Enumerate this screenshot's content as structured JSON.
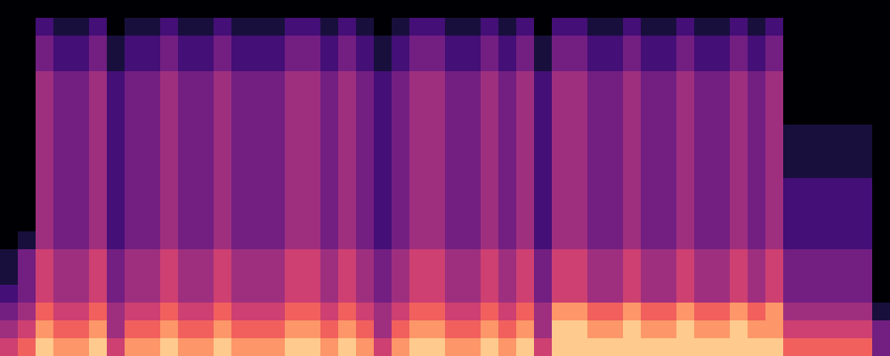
{
  "chart_data": {
    "type": "heatmap",
    "tick_labels": false,
    "zlim": [
      0,
      9
    ],
    "cells": [
      [
        0,
        0,
        0,
        0,
        0,
        0,
        0,
        0,
        0,
        0,
        0,
        0,
        0,
        0,
        0,
        0,
        0,
        0,
        0,
        0,
        0,
        0,
        0,
        0,
        0,
        0,
        0,
        0,
        0,
        0,
        0,
        0,
        0,
        0,
        0,
        0,
        0,
        0,
        0,
        0,
        0,
        0,
        0,
        0,
        0,
        0,
        0,
        0,
        0,
        0
      ],
      [
        0,
        0,
        2,
        1,
        1,
        2,
        0,
        1,
        1,
        2,
        1,
        1,
        2,
        1,
        1,
        1,
        2,
        2,
        1,
        2,
        1,
        0,
        1,
        2,
        2,
        1,
        1,
        2,
        1,
        2,
        0,
        2,
        2,
        1,
        1,
        2,
        1,
        1,
        2,
        1,
        1,
        2,
        1,
        2,
        0,
        0,
        0,
        0,
        0,
        0
      ],
      [
        0,
        0,
        3,
        2,
        2,
        3,
        1,
        2,
        2,
        3,
        2,
        2,
        3,
        2,
        2,
        2,
        3,
        3,
        2,
        3,
        2,
        1,
        2,
        3,
        3,
        2,
        2,
        3,
        2,
        3,
        1,
        3,
        3,
        2,
        2,
        3,
        2,
        2,
        3,
        2,
        2,
        3,
        2,
        3,
        0,
        0,
        0,
        0,
        0,
        0
      ],
      [
        0,
        0,
        3,
        2,
        2,
        3,
        1,
        2,
        2,
        3,
        2,
        2,
        3,
        2,
        2,
        2,
        3,
        3,
        2,
        3,
        2,
        1,
        2,
        3,
        3,
        2,
        2,
        3,
        2,
        3,
        1,
        3,
        3,
        2,
        2,
        3,
        2,
        2,
        3,
        2,
        2,
        3,
        2,
        3,
        0,
        0,
        0,
        0,
        0,
        0
      ],
      [
        0,
        0,
        4,
        3,
        3,
        4,
        2,
        3,
        3,
        4,
        3,
        3,
        4,
        3,
        3,
        3,
        4,
        4,
        3,
        4,
        3,
        2,
        3,
        4,
        4,
        3,
        3,
        4,
        3,
        4,
        2,
        4,
        4,
        3,
        3,
        4,
        3,
        3,
        4,
        3,
        3,
        4,
        3,
        4,
        0,
        0,
        0,
        0,
        0,
        0
      ],
      [
        0,
        0,
        4,
        3,
        3,
        4,
        2,
        3,
        3,
        4,
        3,
        3,
        4,
        3,
        3,
        3,
        4,
        4,
        3,
        4,
        3,
        2,
        3,
        4,
        4,
        3,
        3,
        4,
        3,
        4,
        2,
        4,
        4,
        3,
        3,
        4,
        3,
        3,
        4,
        3,
        3,
        4,
        3,
        4,
        0,
        0,
        0,
        0,
        0,
        0
      ],
      [
        0,
        0,
        4,
        3,
        3,
        4,
        2,
        3,
        3,
        4,
        3,
        3,
        4,
        3,
        3,
        3,
        4,
        4,
        3,
        4,
        3,
        2,
        3,
        4,
        4,
        3,
        3,
        4,
        3,
        4,
        2,
        4,
        4,
        3,
        3,
        4,
        3,
        3,
        4,
        3,
        3,
        4,
        3,
        4,
        0,
        0,
        0,
        0,
        0,
        0
      ],
      [
        0,
        0,
        4,
        3,
        3,
        4,
        2,
        3,
        3,
        4,
        3,
        3,
        4,
        3,
        3,
        3,
        4,
        4,
        3,
        4,
        3,
        2,
        3,
        4,
        4,
        3,
        3,
        4,
        3,
        4,
        2,
        4,
        4,
        3,
        3,
        4,
        3,
        3,
        4,
        3,
        3,
        4,
        3,
        4,
        1,
        1,
        1,
        1,
        1,
        0
      ],
      [
        0,
        0,
        4,
        3,
        3,
        4,
        2,
        3,
        3,
        4,
        3,
        3,
        4,
        3,
        3,
        3,
        4,
        4,
        3,
        4,
        3,
        2,
        3,
        4,
        4,
        3,
        3,
        4,
        3,
        4,
        2,
        4,
        4,
        3,
        3,
        4,
        3,
        3,
        4,
        3,
        3,
        4,
        3,
        4,
        1,
        1,
        1,
        1,
        1,
        0
      ],
      [
        0,
        0,
        4,
        3,
        3,
        4,
        2,
        3,
        3,
        4,
        3,
        3,
        4,
        3,
        3,
        3,
        4,
        4,
        3,
        4,
        3,
        2,
        3,
        4,
        4,
        3,
        3,
        4,
        3,
        4,
        2,
        4,
        4,
        3,
        3,
        4,
        3,
        3,
        4,
        3,
        3,
        4,
        3,
        4,
        1,
        1,
        1,
        1,
        1,
        0
      ],
      [
        0,
        0,
        4,
        3,
        3,
        4,
        2,
        3,
        3,
        4,
        3,
        3,
        4,
        3,
        3,
        3,
        4,
        4,
        3,
        4,
        3,
        2,
        3,
        4,
        4,
        3,
        3,
        4,
        3,
        4,
        2,
        4,
        4,
        3,
        3,
        4,
        3,
        3,
        4,
        3,
        3,
        4,
        3,
        4,
        2,
        2,
        2,
        2,
        2,
        0
      ],
      [
        0,
        0,
        4,
        3,
        3,
        4,
        2,
        3,
        3,
        4,
        3,
        3,
        4,
        3,
        3,
        3,
        4,
        4,
        3,
        4,
        3,
        2,
        3,
        4,
        4,
        3,
        3,
        4,
        3,
        4,
        2,
        4,
        4,
        3,
        3,
        4,
        3,
        3,
        4,
        3,
        3,
        4,
        3,
        4,
        2,
        2,
        2,
        2,
        2,
        0
      ],
      [
        0,
        0,
        4,
        3,
        3,
        4,
        2,
        3,
        3,
        4,
        3,
        3,
        4,
        3,
        3,
        3,
        4,
        4,
        3,
        4,
        3,
        2,
        3,
        4,
        4,
        3,
        3,
        4,
        3,
        4,
        2,
        4,
        4,
        3,
        3,
        4,
        3,
        3,
        4,
        3,
        3,
        4,
        3,
        4,
        2,
        2,
        2,
        2,
        2,
        0
      ],
      [
        0,
        1,
        4,
        3,
        3,
        4,
        2,
        3,
        3,
        4,
        3,
        3,
        4,
        3,
        3,
        3,
        4,
        4,
        3,
        4,
        3,
        2,
        3,
        4,
        4,
        3,
        3,
        4,
        3,
        4,
        2,
        4,
        4,
        3,
        3,
        4,
        3,
        3,
        4,
        3,
        3,
        4,
        3,
        4,
        2,
        2,
        2,
        2,
        2,
        0
      ],
      [
        1,
        3,
        5,
        4,
        4,
        5,
        3,
        4,
        4,
        5,
        4,
        4,
        5,
        4,
        4,
        4,
        5,
        5,
        4,
        5,
        4,
        3,
        4,
        5,
        5,
        4,
        4,
        5,
        4,
        5,
        3,
        5,
        5,
        4,
        4,
        5,
        4,
        4,
        5,
        4,
        4,
        5,
        4,
        5,
        3,
        3,
        3,
        3,
        3,
        0
      ],
      [
        1,
        3,
        5,
        4,
        4,
        5,
        3,
        4,
        4,
        5,
        4,
        4,
        5,
        4,
        4,
        4,
        5,
        5,
        4,
        5,
        4,
        3,
        4,
        5,
        5,
        4,
        4,
        5,
        4,
        5,
        3,
        5,
        5,
        4,
        4,
        5,
        4,
        4,
        5,
        4,
        4,
        5,
        4,
        5,
        3,
        3,
        3,
        3,
        3,
        0
      ],
      [
        2,
        3,
        5,
        4,
        4,
        5,
        3,
        4,
        4,
        5,
        4,
        4,
        5,
        4,
        4,
        4,
        5,
        5,
        4,
        5,
        4,
        3,
        4,
        5,
        5,
        4,
        4,
        5,
        4,
        5,
        3,
        5,
        5,
        4,
        4,
        5,
        4,
        4,
        5,
        4,
        4,
        5,
        4,
        5,
        3,
        3,
        3,
        3,
        3,
        0
      ],
      [
        3,
        4,
        6,
        5,
        5,
        6,
        4,
        5,
        5,
        6,
        5,
        5,
        6,
        5,
        5,
        5,
        6,
        6,
        5,
        6,
        5,
        4,
        5,
        6,
        6,
        5,
        5,
        6,
        5,
        6,
        4,
        7,
        7,
        6,
        6,
        7,
        6,
        6,
        7,
        6,
        6,
        7,
        6,
        7,
        4,
        4,
        4,
        4,
        4,
        1
      ],
      [
        4,
        5,
        7,
        6,
        6,
        7,
        4,
        6,
        6,
        7,
        6,
        6,
        7,
        6,
        6,
        6,
        7,
        7,
        6,
        7,
        6,
        4,
        6,
        7,
        7,
        6,
        6,
        7,
        6,
        7,
        4,
        8,
        8,
        7,
        7,
        8,
        7,
        7,
        8,
        7,
        7,
        8,
        7,
        7,
        5,
        5,
        5,
        5,
        5,
        3
      ],
      [
        5,
        6,
        8,
        7,
        7,
        8,
        5,
        7,
        7,
        8,
        7,
        7,
        8,
        7,
        7,
        7,
        8,
        8,
        7,
        8,
        7,
        5,
        7,
        8,
        8,
        7,
        7,
        8,
        7,
        8,
        5,
        8,
        8,
        8,
        8,
        8,
        8,
        8,
        8,
        8,
        8,
        8,
        8,
        8,
        6,
        6,
        6,
        6,
        6,
        3
      ]
    ]
  }
}
